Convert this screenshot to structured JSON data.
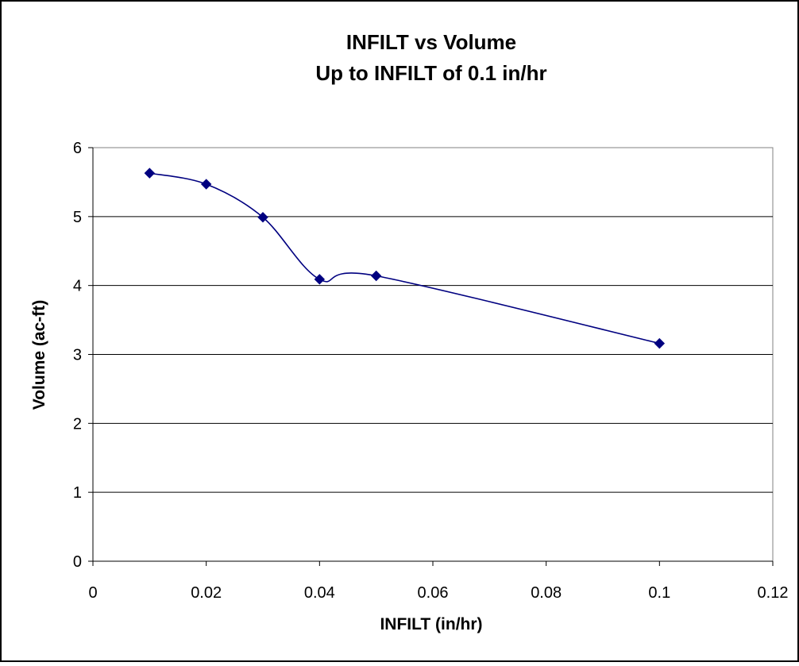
{
  "chart_data": {
    "type": "scatter",
    "title": "INFILT vs Volume",
    "subtitle": "Up to INFILT of 0.1 in/hr",
    "xlabel": "INFILT (in/hr)",
    "ylabel": "Volume (ac-ft)",
    "xlim": [
      0,
      0.12
    ],
    "ylim": [
      0,
      6
    ],
    "x_ticks": [
      "0",
      "0.02",
      "0.04",
      "0.06",
      "0.08",
      "0.1",
      "0.12"
    ],
    "y_ticks": [
      "0",
      "1",
      "2",
      "3",
      "4",
      "5",
      "6"
    ],
    "x_tick_values": [
      0,
      0.02,
      0.04,
      0.06,
      0.08,
      0.1,
      0.12
    ],
    "y_tick_values": [
      0,
      1,
      2,
      3,
      4,
      5,
      6
    ],
    "grid": "horizontal major gridlines",
    "legend": "none",
    "smoothed_line": true,
    "series": [
      {
        "x": [
          0.01,
          0.02,
          0.03,
          0.04,
          0.05,
          0.1
        ],
        "y": [
          5.63,
          5.47,
          4.99,
          4.09,
          4.14,
          3.16
        ],
        "color": "#000080"
      }
    ]
  }
}
